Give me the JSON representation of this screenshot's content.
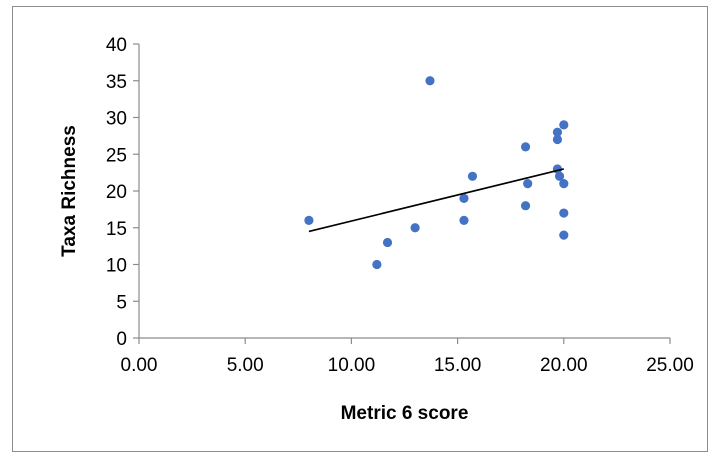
{
  "chart_data": {
    "type": "scatter",
    "title": "",
    "xlabel": "Metric 6 score",
    "ylabel": "Taxa Richness",
    "xlim": [
      0,
      25
    ],
    "ylim": [
      0,
      40
    ],
    "x_ticks": [
      0,
      5,
      10,
      15,
      20,
      25
    ],
    "x_tick_labels": [
      "0.00",
      "5.00",
      "10.00",
      "15.00",
      "20.00",
      "25.00"
    ],
    "y_ticks": [
      0,
      5,
      10,
      15,
      20,
      25,
      30,
      35,
      40
    ],
    "y_tick_labels": [
      "0",
      "5",
      "10",
      "15",
      "20",
      "25",
      "30",
      "35",
      "40"
    ],
    "grid": false,
    "legend": "none",
    "series": [
      {
        "color": "#4472c4",
        "points": [
          {
            "x": 8.0,
            "y": 16
          },
          {
            "x": 11.2,
            "y": 10
          },
          {
            "x": 11.7,
            "y": 13
          },
          {
            "x": 13.0,
            "y": 15
          },
          {
            "x": 13.7,
            "y": 35
          },
          {
            "x": 15.3,
            "y": 19
          },
          {
            "x": 15.3,
            "y": 16
          },
          {
            "x": 15.7,
            "y": 22
          },
          {
            "x": 18.2,
            "y": 26
          },
          {
            "x": 18.3,
            "y": 21
          },
          {
            "x": 18.2,
            "y": 18
          },
          {
            "x": 19.7,
            "y": 28
          },
          {
            "x": 19.7,
            "y": 27
          },
          {
            "x": 19.7,
            "y": 23
          },
          {
            "x": 19.8,
            "y": 22
          },
          {
            "x": 20.0,
            "y": 29
          },
          {
            "x": 20.0,
            "y": 21
          },
          {
            "x": 20.0,
            "y": 17
          },
          {
            "x": 20.0,
            "y": 14
          }
        ]
      }
    ],
    "trendline": {
      "type": "linear",
      "color": "#000000",
      "from": {
        "x": 8.0,
        "y": 14.5
      },
      "to": {
        "x": 20.0,
        "y": 23.0
      }
    }
  }
}
